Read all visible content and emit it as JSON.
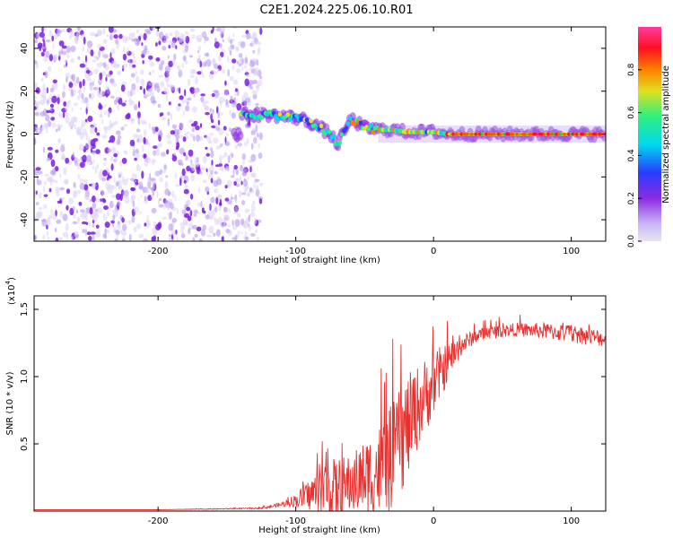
{
  "title": "C2E1.2024.225.06.10.R01",
  "chart_data": [
    {
      "type": "heatmap",
      "name": "spectrogram",
      "xlabel": "Height of straight line (km)",
      "ylabel": "Frequency (Hz)",
      "xlim": [
        -290,
        125
      ],
      "ylim": [
        -50,
        50
      ],
      "xticks": [
        -200,
        -100,
        0,
        100
      ],
      "yticks": [
        -40,
        -20,
        0,
        20,
        40
      ],
      "noise_region_x": [
        -290,
        -125
      ],
      "signal_track": [
        {
          "x": -140,
          "f": 9
        },
        {
          "x": -120,
          "f": 9
        },
        {
          "x": -105,
          "f": 8
        },
        {
          "x": -95,
          "f": 7
        },
        {
          "x": -85,
          "f": 4
        },
        {
          "x": -75,
          "f": 0
        },
        {
          "x": -70,
          "f": -5
        },
        {
          "x": -60,
          "f": 7
        },
        {
          "x": -50,
          "f": 3
        },
        {
          "x": -40,
          "f": 2
        },
        {
          "x": -30,
          "f": 2
        },
        {
          "x": -20,
          "f": 1
        },
        {
          "x": -10,
          "f": 1
        },
        {
          "x": 0,
          "f": 1
        },
        {
          "x": 10,
          "f": 0
        },
        {
          "x": 50,
          "f": 0
        },
        {
          "x": 90,
          "f": 0
        },
        {
          "x": 125,
          "f": 0
        }
      ],
      "colorbar": {
        "label": "Normalized spectral amplitude",
        "range": [
          0,
          1
        ],
        "ticks": [
          "0.0",
          "0.2",
          "0.4",
          "0.6",
          "0.8"
        ]
      }
    },
    {
      "type": "line",
      "name": "snr",
      "xlabel": "Height of straight line (km)",
      "ylabel": "SNR (10 * v/v)",
      "scale_label": "(x10",
      "scale_exp": "4",
      "xlim": [
        -290,
        125
      ],
      "ylim": [
        0,
        1.6
      ],
      "xticks": [
        -200,
        -100,
        0,
        100
      ],
      "yticks": [
        "0.5",
        "1.0",
        "1.5"
      ],
      "series_color": "#e8302e",
      "x": [
        -290,
        -200,
        -130,
        -120,
        -110,
        -100,
        -90,
        -80,
        -70,
        -60,
        -50,
        -40,
        -30,
        -20,
        -10,
        0,
        10,
        20,
        30,
        40,
        60,
        80,
        100,
        125
      ],
      "y": [
        0.01,
        0.01,
        0.02,
        0.03,
        0.05,
        0.08,
        0.12,
        0.17,
        0.15,
        0.2,
        0.25,
        0.3,
        0.4,
        0.6,
        0.8,
        0.95,
        1.1,
        1.23,
        1.3,
        1.33,
        1.35,
        1.34,
        1.32,
        1.28
      ],
      "noise_amp": [
        0.0,
        0.0,
        0.005,
        0.01,
        0.02,
        0.05,
        0.12,
        0.2,
        0.25,
        0.22,
        0.28,
        0.35,
        0.4,
        0.4,
        0.3,
        0.25,
        0.15,
        0.08,
        0.05,
        0.05,
        0.05,
        0.06,
        0.07,
        0.06
      ]
    }
  ],
  "colors": {
    "heat_scale": [
      "#e8e4ee",
      "#c9b8f5",
      "#8a2be2",
      "#2a3cff",
      "#00d8f0",
      "#2ef080",
      "#e0e020",
      "#ff8000",
      "#ff1020",
      "#ff3aa0"
    ]
  }
}
